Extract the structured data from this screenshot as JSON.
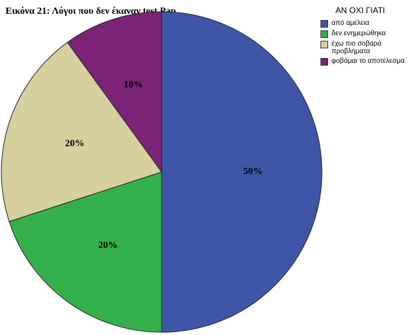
{
  "chart_data": {
    "type": "pie",
    "title": "Εικόνα 21: Λόγοι που δεν έκαναν test Pap",
    "legend_title": "ΑΝ ΟΧΙ ΓΙΑΤΙ",
    "categories": [
      "από αμέλεια",
      "δεν ενημερώθηκα",
      "έχω πιο σοβαρά προβλήματα",
      "φοβάμαι το αποτέλεσμα"
    ],
    "values": [
      50,
      20,
      20,
      10
    ],
    "value_labels": [
      "50%",
      "20%",
      "20%",
      "10%"
    ],
    "colors": [
      "#3f56a8",
      "#34b04a",
      "#d6cf9e",
      "#7b2377"
    ],
    "legend": "right"
  }
}
